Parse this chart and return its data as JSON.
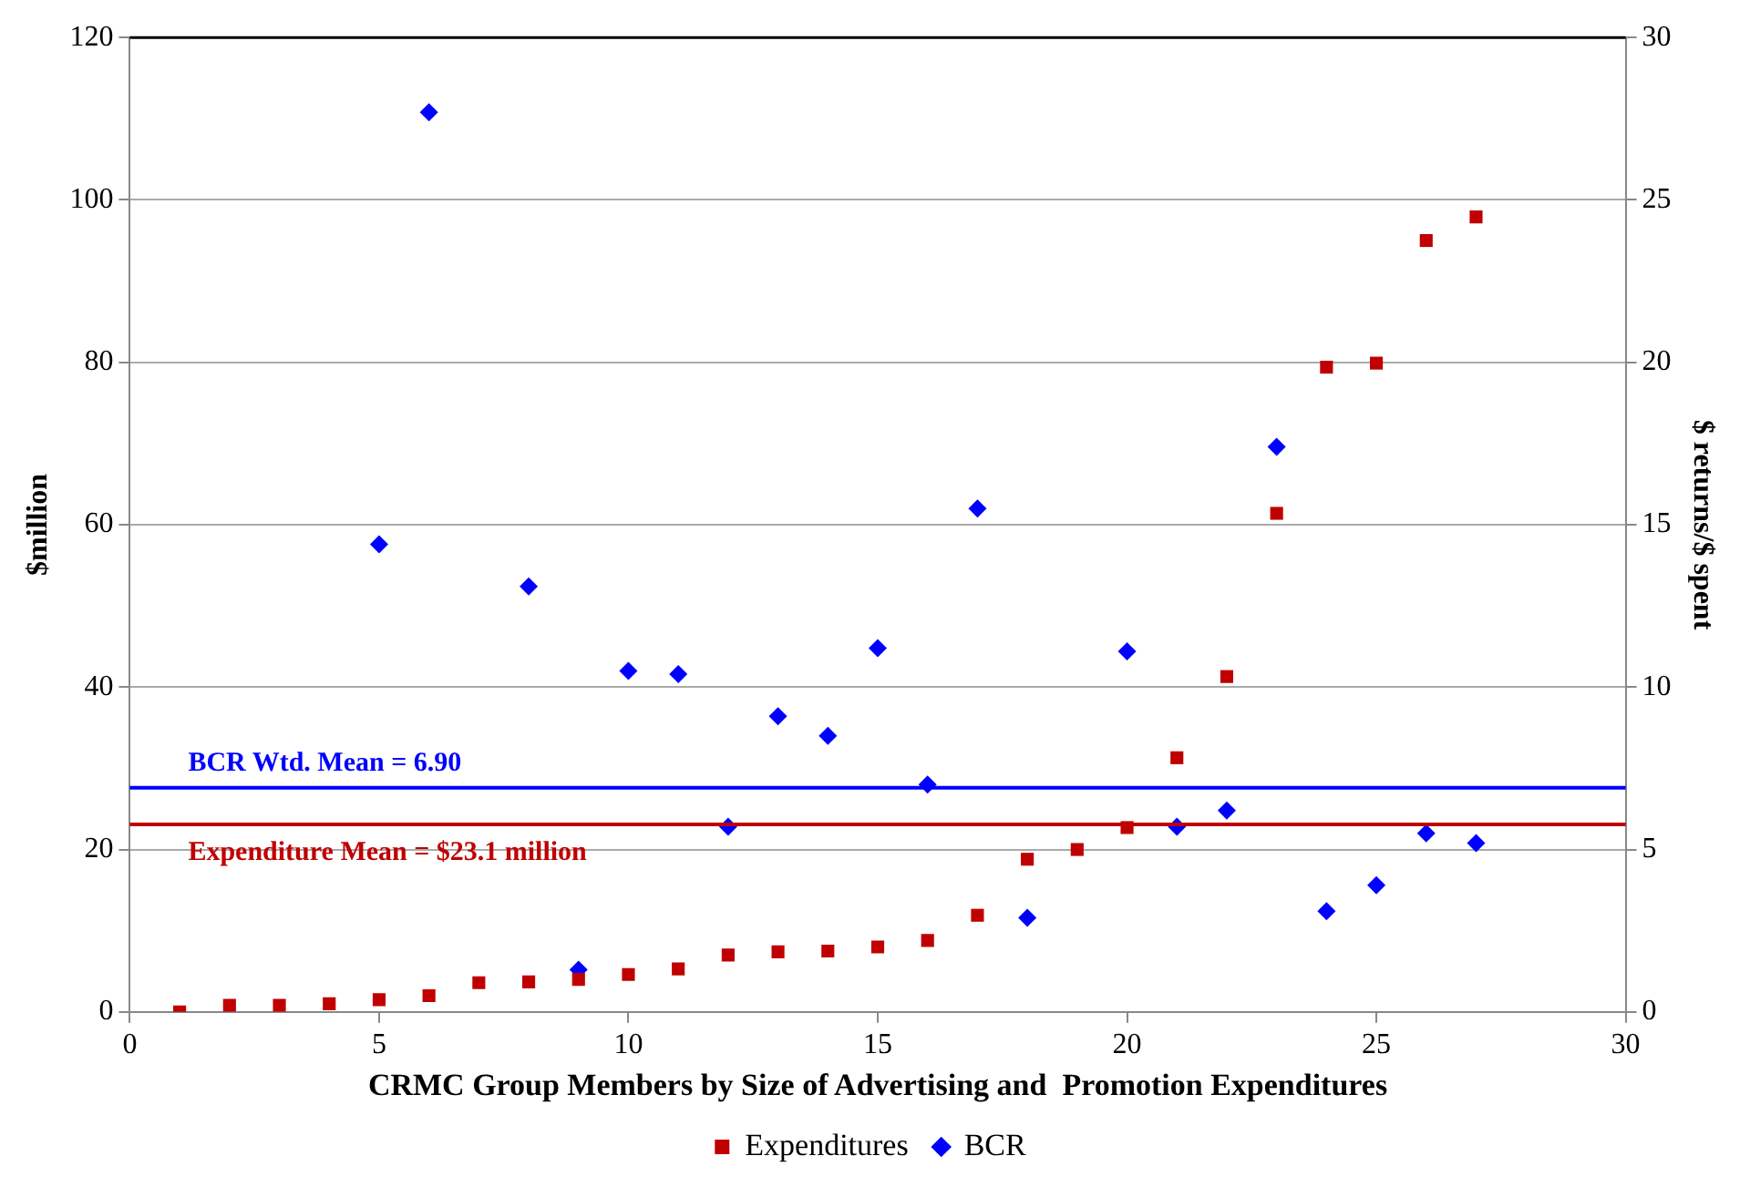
{
  "chart_data": {
    "type": "scatter",
    "xlabel": "CRMC Group Members by Size of Advertising and  Promotion Expenditures",
    "ylabel": "$million",
    "y2label": "$ returns/$ spent",
    "x": [
      1,
      2,
      3,
      4,
      5,
      6,
      7,
      8,
      9,
      10,
      11,
      12,
      13,
      14,
      15,
      16,
      17,
      18,
      19,
      20,
      21,
      22,
      23,
      24,
      25,
      26,
      27
    ],
    "series": [
      {
        "name": "Expenditures",
        "color": "#c00000",
        "marker": "square",
        "values": [
          0,
          0.8,
          0.8,
          1,
          1.5,
          2,
          3.6,
          3.7,
          4,
          4.6,
          5.3,
          7,
          7.4,
          7.5,
          8,
          8.8,
          11.9,
          18.8,
          20,
          22.7,
          31.3,
          41.3,
          61.4,
          79.4,
          79.9,
          95,
          97.9
        ]
      },
      {
        "name": "BCR",
        "color": "#0000ff",
        "marker": "diamond",
        "axis": "y2",
        "values": [
          null,
          null,
          null,
          null,
          14.4,
          27.7,
          null,
          13.1,
          1.3,
          10.5,
          10.4,
          5.7,
          9.1,
          8.5,
          11.2,
          7,
          15.5,
          2.9,
          null,
          11.1,
          5.7,
          6.2,
          17.4,
          3.1,
          3.9,
          5.5,
          5.2
        ]
      }
    ],
    "xlim": [
      0,
      30
    ],
    "xticks": [
      0,
      5,
      10,
      15,
      20,
      25,
      30
    ],
    "ylim": [
      0,
      120
    ],
    "yticks": [
      0,
      20,
      40,
      60,
      80,
      100,
      120
    ],
    "y2lim": [
      0,
      30
    ],
    "y2ticks": [
      0,
      5,
      10,
      15,
      20,
      25,
      30
    ],
    "ref_lines": [
      {
        "axis": "y2",
        "value": 6.9,
        "label": "BCR Wtd. Mean = 6.90",
        "color": "#0000ff"
      },
      {
        "axis": "y",
        "value": 23.1,
        "label": "Expenditure Mean = $23.1 million",
        "color": "#c00000"
      }
    ],
    "grid": "y",
    "legend": "bottom"
  }
}
